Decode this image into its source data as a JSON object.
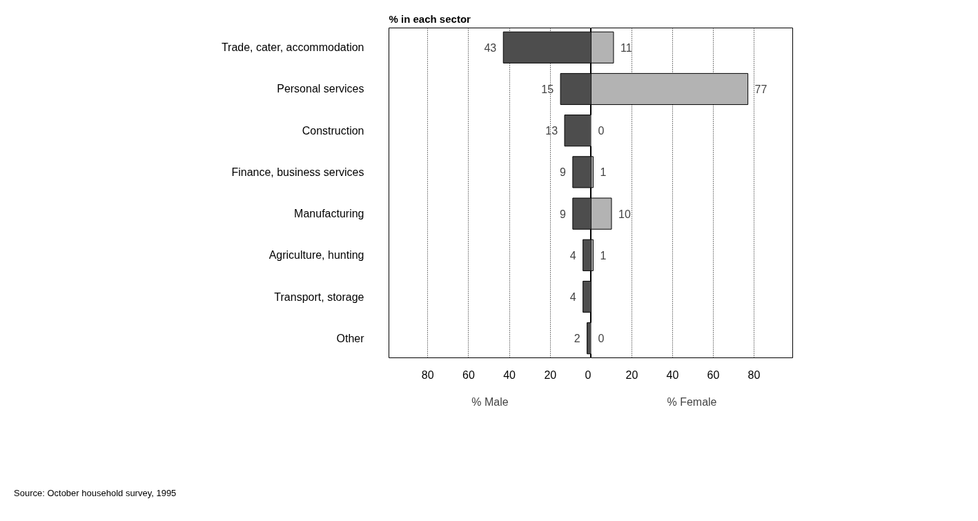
{
  "chart_data": [
    {
      "type": "bar",
      "orientation": "horizontal",
      "title": "% in each sector",
      "xlabel": "% Male",
      "categories": [
        "Trade, cater, accommodation",
        "Personal services",
        "Construction",
        "Finance, business services",
        "Manufacturing",
        "Agriculture, hunting",
        "Transport, storage",
        "Other"
      ],
      "series": [
        {
          "color": "#4d4d4d",
          "values": [
            43,
            15,
            13,
            9,
            9,
            4,
            4,
            2
          ]
        }
      ],
      "data_labels": true,
      "xlim": [
        99,
        0
      ],
      "xticks": [
        80,
        60,
        40,
        20,
        0
      ],
      "grid": "x",
      "annotations": [
        "Source: October household survey, 1995"
      ]
    },
    {
      "type": "bar",
      "orientation": "horizontal",
      "xlabel": "% Female",
      "series": [
        {
          "color": "#b3b3b3",
          "values": [
            11,
            77,
            0,
            1,
            10,
            1,
            null,
            0
          ]
        }
      ],
      "data_labels": true,
      "xlim": [
        0,
        99
      ],
      "xticks": [
        20,
        40,
        60,
        80
      ],
      "grid": "x",
      "tick_labels": "x"
    }
  ]
}
